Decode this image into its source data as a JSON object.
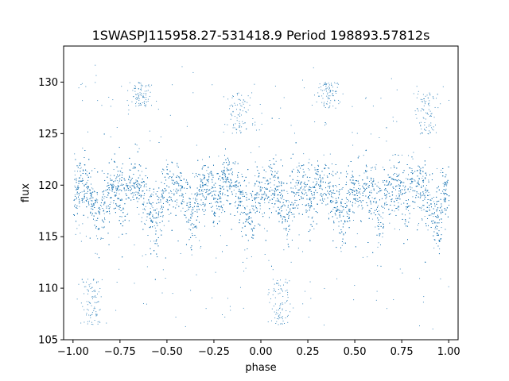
{
  "chart_data": {
    "type": "scatter",
    "title": "1SWASPJ115958.27-531418.9 Period 198893.57812s",
    "xlabel": "phase",
    "ylabel": "flux",
    "xlim": [
      -1.05,
      1.05
    ],
    "ylim": [
      105.0,
      133.5
    ],
    "xticks": [
      -1.0,
      -0.75,
      -0.5,
      -0.25,
      0.0,
      0.25,
      0.5,
      0.75,
      1.0
    ],
    "xtick_labels": [
      "−1.00",
      "−0.75",
      "−0.50",
      "−0.25",
      "0.00",
      "0.25",
      "0.50",
      "0.75",
      "1.00"
    ],
    "yticks": [
      105,
      110,
      115,
      120,
      125,
      130
    ],
    "ytick_labels": [
      "105",
      "110",
      "115",
      "120",
      "125",
      "130"
    ],
    "grid": false,
    "marker_color": "#1f77b4",
    "series": [
      {
        "profile": {
          "phase": [
            0.0,
            0.05,
            0.1,
            0.14,
            0.18,
            0.22,
            0.27,
            0.3,
            0.35,
            0.4,
            0.44,
            0.48,
            0.5
          ],
          "median_flux": [
            119.5,
            120.0,
            119.0,
            116.5,
            119.5,
            120.0,
            118.5,
            120.5,
            120.0,
            118.5,
            116.0,
            119.5,
            119.5
          ],
          "spread": [
            1.2,
            1.2,
            1.3,
            1.8,
            1.3,
            1.2,
            1.5,
            1.2,
            1.2,
            1.4,
            1.8,
            1.3,
            1.2
          ]
        },
        "period_in_phase": 0.5,
        "x_range": [
          -1.0,
          1.0
        ],
        "n_points": 9000,
        "outlier_clusters": [
          {
            "phase": -0.9,
            "flux_range": [
              106.5,
              111.0
            ]
          },
          {
            "phase": -0.64,
            "flux_range": [
              127.5,
              130.0
            ]
          },
          {
            "phase": -0.12,
            "flux_range": [
              125.0,
              129.0
            ]
          },
          {
            "phase": 0.1,
            "flux_range": [
              106.5,
              111.0
            ]
          },
          {
            "phase": 0.36,
            "flux_range": [
              127.5,
              130.0
            ]
          },
          {
            "phase": 0.88,
            "flux_range": [
              125.0,
              129.0
            ]
          }
        ]
      }
    ]
  }
}
